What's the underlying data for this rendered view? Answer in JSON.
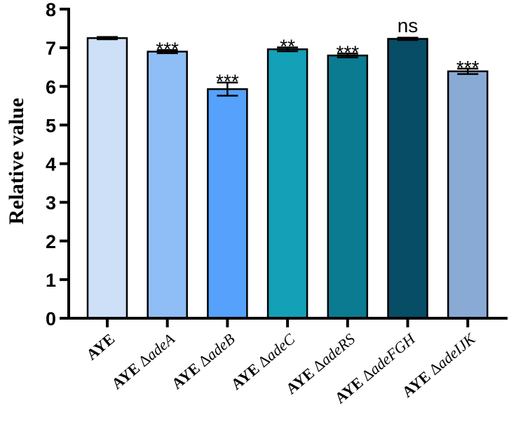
{
  "chart_data": {
    "type": "bar",
    "title": "",
    "xlabel": "",
    "ylabel": "Relative value",
    "ylim": [
      0,
      8
    ],
    "yticks": [
      0,
      1,
      2,
      3,
      4,
      5,
      6,
      7,
      8
    ],
    "grid": false,
    "legend": "none",
    "bars": [
      {
        "category": "AYE",
        "strain": "AYE",
        "mutation": "",
        "value": 7.25,
        "error": 0.03,
        "significance": "",
        "color": "#cde0f8"
      },
      {
        "category": "AYE ΔadeA",
        "strain": "AYE",
        "mutation": "Δ",
        "gene": "adeA",
        "value": 6.9,
        "error": 0.04,
        "significance": "***",
        "color": "#8fbdf6"
      },
      {
        "category": "AYE ΔadeB",
        "strain": "AYE",
        "mutation": "Δ",
        "gene": "adeB",
        "value": 5.93,
        "error": 0.17,
        "significance": "***",
        "color": "#55a1fb"
      },
      {
        "category": "AYE ΔadeC",
        "strain": "AYE",
        "mutation": "Δ",
        "gene": "adeC",
        "value": 6.96,
        "error": 0.05,
        "significance": "**",
        "color": "#14a0b6"
      },
      {
        "category": "AYE ΔadeRS",
        "strain": "AYE",
        "mutation": "Δ",
        "gene": "adeRS",
        "value": 6.8,
        "error": 0.05,
        "significance": "***",
        "color": "#0b7b91"
      },
      {
        "category": "AYE ΔadeFGH",
        "strain": "AYE",
        "mutation": "Δ",
        "gene": "adeFGH",
        "value": 7.23,
        "error": 0.03,
        "significance": "ns",
        "color": "#064d65"
      },
      {
        "category": "AYE ΔadeIJK",
        "strain": "AYE",
        "mutation": "Δ",
        "gene": "adeIJK",
        "value": 6.39,
        "error": 0.07,
        "significance": "***",
        "color": "#8aaad6"
      }
    ]
  }
}
